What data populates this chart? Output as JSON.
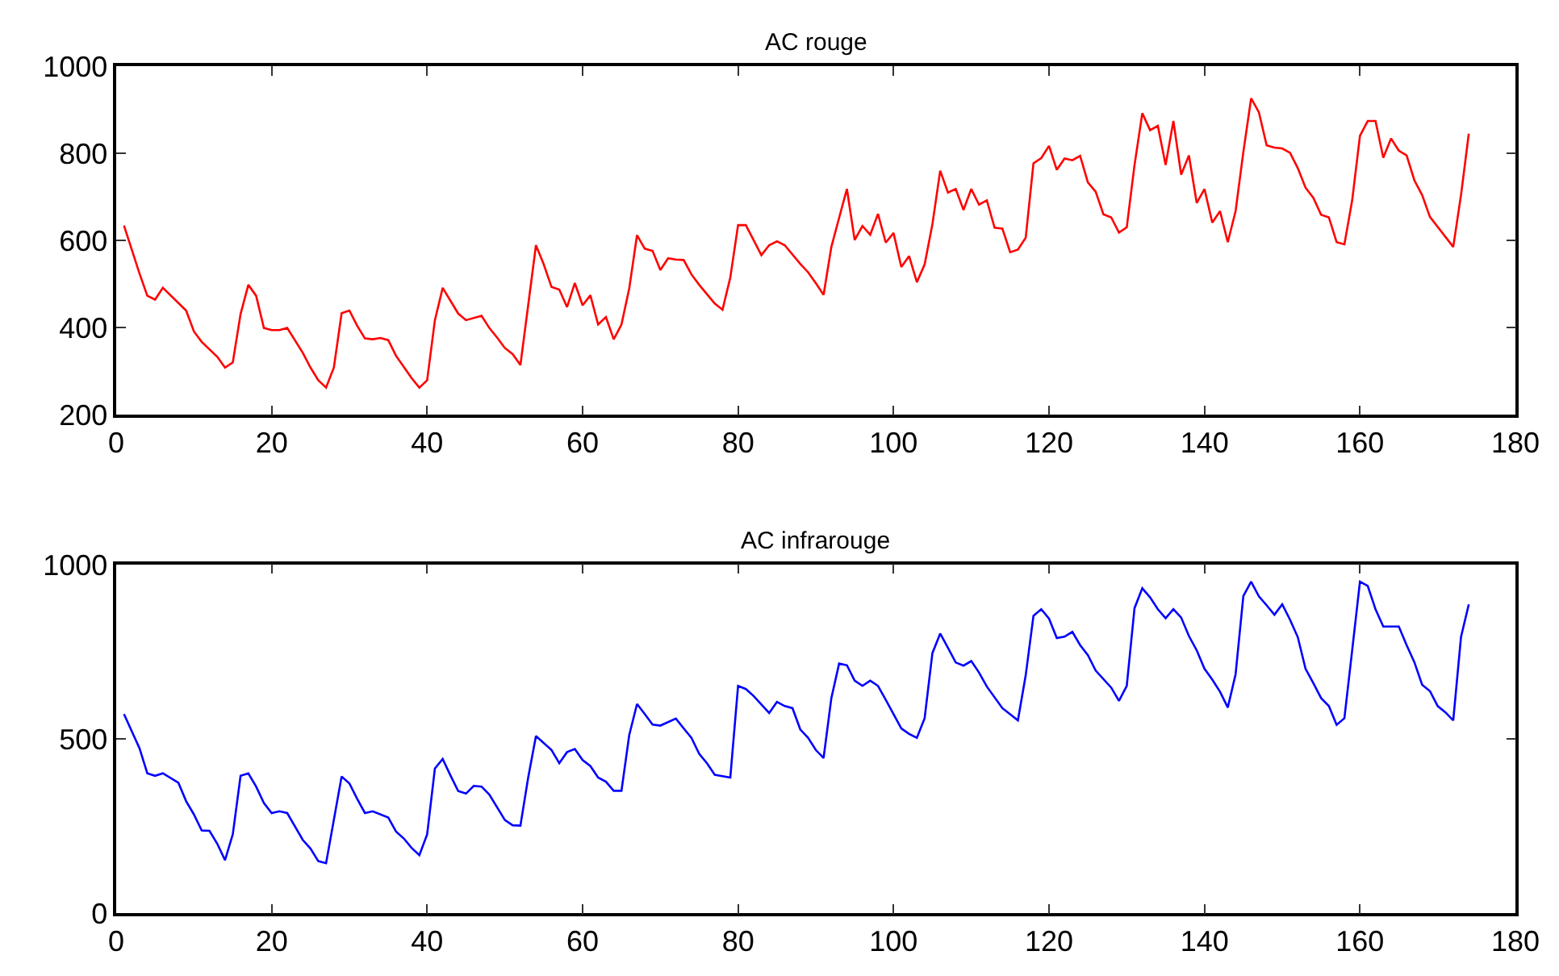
{
  "chart_data": [
    {
      "type": "line",
      "title": "AC rouge",
      "xlim": [
        0,
        180
      ],
      "xticks": [
        0,
        20,
        40,
        60,
        80,
        100,
        120,
        140,
        160,
        180
      ],
      "ylim": [
        200,
        1000
      ],
      "yticks": [
        200,
        400,
        600,
        800,
        1000
      ],
      "series": [
        {
          "color": "#ff0000",
          "x": [
            1,
            3,
            4,
            5,
            6,
            9,
            10,
            11,
            13,
            14,
            15,
            16,
            17,
            18,
            19,
            20,
            21,
            22,
            24,
            25,
            26,
            27,
            28,
            29,
            30,
            31,
            32,
            33,
            34,
            35,
            36,
            38,
            39,
            40,
            41,
            42,
            44,
            45,
            47,
            48,
            49,
            50,
            51,
            52,
            54,
            55,
            56,
            57,
            58,
            59,
            60,
            61,
            62,
            63,
            64,
            65,
            66,
            67,
            68,
            69,
            70,
            71,
            72,
            73,
            74,
            75,
            77,
            78,
            79,
            80,
            81,
            83,
            84,
            85,
            86,
            88,
            89,
            90,
            91,
            92,
            93,
            94,
            95,
            96,
            97,
            98,
            99,
            100,
            101,
            102,
            103,
            104,
            105,
            106,
            107,
            108,
            109,
            110,
            111,
            112,
            113,
            114,
            115,
            116,
            117,
            118,
            119,
            120,
            121,
            122,
            123,
            124,
            125,
            126,
            127,
            128,
            129,
            130,
            131,
            132,
            133,
            134,
            135,
            136,
            137,
            138,
            139,
            140,
            141,
            142,
            143,
            144,
            145,
            146,
            147,
            148,
            149,
            150,
            151,
            152,
            153,
            154,
            155,
            156,
            157,
            158,
            159,
            160,
            161,
            162,
            163,
            164,
            165,
            166,
            167,
            168,
            169,
            170,
            172,
            173,
            174
          ],
          "values": [
            634,
            524,
            473,
            464,
            491,
            439,
            391,
            367,
            333,
            308,
            320,
            431,
            498,
            473,
            399,
            394,
            394,
            399,
            342,
            308,
            279,
            262,
            308,
            433,
            439,
            404,
            375,
            373,
            376,
            371,
            335,
            284,
            262,
            279,
            417,
            491,
            432,
            417,
            427,
            399,
            377,
            353,
            339,
            314,
            589,
            545,
            493,
            487,
            447,
            502,
            451,
            474,
            407,
            424,
            373,
            407,
            490,
            612,
            581,
            576,
            532,
            559,
            556,
            555,
            522,
            498,
            455,
            441,
            515,
            635,
            635,
            566,
            589,
            598,
            589,
            546,
            527,
            502,
            475,
            585,
            652,
            718,
            601,
            633,
            613,
            661,
            595,
            617,
            539,
            564,
            504,
            545,
            637,
            760,
            710,
            718,
            670,
            718,
            682,
            692,
            629,
            627,
            573,
            579,
            606,
            777,
            789,
            817,
            762,
            788,
            784,
            794,
            733,
            712,
            660,
            653,
            618,
            630,
            773,
            892,
            853,
            863,
            773,
            874,
            751,
            795,
            686,
            718,
            641,
            667,
            596,
            667,
            803,
            926,
            894,
            818,
            813,
            811,
            801,
            766,
            721,
            698,
            659,
            653,
            596,
            591,
            692,
            840,
            874,
            874,
            790,
            834,
            806,
            795,
            738,
            704,
            654,
            631,
            585,
            704,
            845
          ]
        }
      ]
    },
    {
      "type": "line",
      "title": "AC infrarouge",
      "xlim": [
        0,
        180
      ],
      "xticks": [
        0,
        20,
        40,
        60,
        80,
        100,
        120,
        140,
        160,
        180
      ],
      "ylim": [
        0,
        1000
      ],
      "yticks": [
        0,
        500,
        1000
      ],
      "series": [
        {
          "color": "#0000ff",
          "x": [
            1,
            3,
            4,
            5,
            6,
            8,
            9,
            10,
            11,
            12,
            13,
            14,
            15,
            16,
            17,
            18,
            19,
            20,
            21,
            22,
            24,
            25,
            26,
            27,
            29,
            30,
            31,
            32,
            33,
            35,
            36,
            37,
            38,
            39,
            40,
            41,
            42,
            43,
            44,
            45,
            46,
            47,
            48,
            50,
            51,
            52,
            53,
            54,
            56,
            57,
            58,
            59,
            60,
            61,
            62,
            63,
            64,
            65,
            66,
            67,
            68,
            69,
            70,
            72,
            73,
            74,
            75,
            76,
            77,
            79,
            80,
            81,
            82,
            84,
            85,
            86,
            87,
            88,
            89,
            90,
            91,
            92,
            93,
            94,
            95,
            96,
            97,
            98,
            99,
            100,
            101,
            102,
            103,
            104,
            105,
            106,
            107,
            108,
            109,
            110,
            111,
            112,
            114,
            116,
            117,
            118,
            119,
            120,
            121,
            122,
            123,
            124,
            125,
            126,
            128,
            129,
            130,
            131,
            132,
            133,
            134,
            135,
            136,
            137,
            138,
            139,
            140,
            141,
            142,
            143,
            144,
            145,
            146,
            147,
            148,
            149,
            150,
            151,
            152,
            153,
            154,
            155,
            156,
            157,
            158,
            159,
            160,
            161,
            162,
            163,
            165,
            166,
            167,
            168,
            169,
            170,
            171,
            172,
            173,
            174
          ],
          "values": [
            571,
            473,
            401,
            394,
            401,
            374,
            321,
            283,
            237,
            236,
            199,
            152,
            226,
            394,
            401,
            363,
            316,
            287,
            292,
            287,
            210,
            185,
            149,
            143,
            392,
            372,
            328,
            287,
            292,
            274,
            234,
            214,
            187,
            166,
            226,
            415,
            442,
            395,
            350,
            343,
            365,
            363,
            340,
            267,
            252,
            251,
            389,
            508,
            468,
            430,
            462,
            471,
            439,
            422,
            389,
            377,
            351,
            351,
            511,
            600,
            571,
            541,
            538,
            558,
            530,
            503,
            457,
            430,
            397,
            389,
            652,
            643,
            623,
            574,
            606,
            594,
            588,
            527,
            503,
            468,
            445,
            617,
            716,
            711,
            667,
            652,
            667,
            652,
            612,
            571,
            530,
            514,
            503,
            559,
            746,
            802,
            761,
            719,
            710,
            723,
            690,
            650,
            588,
            553,
            682,
            853,
            872,
            845,
            789,
            793,
            807,
            769,
            740,
            696,
            647,
            609,
            652,
            875,
            932,
            906,
            872,
            846,
            872,
            848,
            795,
            754,
            701,
            670,
            635,
            590,
            685,
            910,
            951,
            909,
            883,
            856,
            886,
            842,
            792,
            701,
            660,
            617,
            594,
            540,
            559,
            754,
            951,
            939,
            872,
            822,
            822,
            769,
            720,
            655,
            637,
            594,
            576,
            553,
            792,
            886
          ]
        }
      ]
    }
  ]
}
